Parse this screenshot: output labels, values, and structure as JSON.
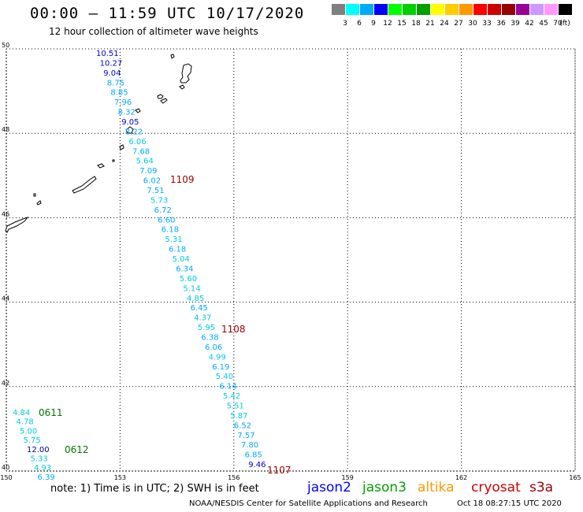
{
  "header": {
    "title": "00:00 – 11:59 UTC 10/17/2020",
    "subtitle": "12 hour collection of altimeter wave heights"
  },
  "legend": {
    "unit": "(ft)",
    "bins": [
      {
        "label": "3",
        "color": "#808080"
      },
      {
        "label": "6",
        "color": "#00ffff"
      },
      {
        "label": "9",
        "color": "#00aaff"
      },
      {
        "label": "12",
        "color": "#0000ff"
      },
      {
        "label": "15",
        "color": "#00ff00"
      },
      {
        "label": "18",
        "color": "#00d000"
      },
      {
        "label": "21",
        "color": "#00a000"
      },
      {
        "label": "24",
        "color": "#ffff00"
      },
      {
        "label": "27",
        "color": "#ffcc00"
      },
      {
        "label": "30",
        "color": "#ff9900"
      },
      {
        "label": "33",
        "color": "#ff0000"
      },
      {
        "label": "36",
        "color": "#d00000"
      },
      {
        "label": "39",
        "color": "#990000"
      },
      {
        "label": "42",
        "color": "#990099"
      },
      {
        "label": "45",
        "color": "#cc99ff"
      },
      {
        "label": "70",
        "color": "#ff99ff"
      },
      {
        "label": "",
        "color": "#000000"
      }
    ]
  },
  "map": {
    "lon_range": [
      150,
      165
    ],
    "lat_range": [
      40,
      50
    ],
    "x_ticks": [
      "150",
      "153",
      "156",
      "159",
      "162",
      "165"
    ],
    "y_ticks": [
      "50",
      "48",
      "46",
      "44",
      "42",
      "40"
    ],
    "grid": "dotted",
    "tracks": [
      {
        "points": [
          {
            "label": "10.51",
            "color": "#0000cc"
          },
          {
            "label": "10.27",
            "color": "#0000cc"
          },
          {
            "label": "9.04",
            "color": "#0000cc"
          },
          {
            "label": "8.75",
            "color": "#00aaff"
          },
          {
            "label": "8.85",
            "color": "#00aaff"
          },
          {
            "label": "7.96",
            "color": "#00aaff"
          },
          {
            "label": "8.32",
            "color": "#00aaff"
          },
          {
            "label": "9.05",
            "color": "#0000cc"
          },
          {
            "label": "8.22",
            "color": "#00aaff"
          },
          {
            "label": "6.06",
            "color": "#00ccdd"
          },
          {
            "label": "7.68",
            "color": "#00aaff"
          },
          {
            "label": "5.64",
            "color": "#00ccdd"
          },
          {
            "label": "7.09",
            "color": "#00aaff"
          },
          {
            "label": "6.02",
            "color": "#00aaff"
          },
          {
            "label": "7.51",
            "color": "#00aaff"
          },
          {
            "label": "5.73",
            "color": "#00ccdd"
          },
          {
            "label": "6.72",
            "color": "#00aaff"
          },
          {
            "label": "6.60",
            "color": "#00aaff"
          },
          {
            "label": "6.18",
            "color": "#00aaff"
          },
          {
            "label": "5.31",
            "color": "#00ccdd"
          },
          {
            "label": "6.18",
            "color": "#00aaff"
          },
          {
            "label": "5.04",
            "color": "#00ccdd"
          },
          {
            "label": "6.34",
            "color": "#00aaff"
          },
          {
            "label": "5.60",
            "color": "#00ccdd"
          },
          {
            "label": "5.14",
            "color": "#00ccdd"
          },
          {
            "label": "4.85",
            "color": "#00ccdd"
          },
          {
            "label": "6.45",
            "color": "#00aaff"
          },
          {
            "label": "4.37",
            "color": "#00ccdd"
          },
          {
            "label": "5.95",
            "color": "#00ccdd"
          },
          {
            "label": "6.38",
            "color": "#00aaff"
          },
          {
            "label": "6.06",
            "color": "#00aaff"
          },
          {
            "label": "4.99",
            "color": "#00ccdd"
          },
          {
            "label": "6.19",
            "color": "#00aaff"
          },
          {
            "label": "5.40",
            "color": "#00ccdd"
          },
          {
            "label": "6.14",
            "color": "#00aaff"
          },
          {
            "label": "5.42",
            "color": "#00ccdd"
          },
          {
            "label": "5.51",
            "color": "#00ccdd"
          },
          {
            "label": "5.87",
            "color": "#00ccdd"
          },
          {
            "label": "6.52",
            "color": "#00aaff"
          },
          {
            "label": "7.57",
            "color": "#00aaff"
          },
          {
            "label": "7.80",
            "color": "#00aaff"
          },
          {
            "label": "6.85",
            "color": "#00aaff"
          },
          {
            "label": "9.46",
            "color": "#0000cc"
          }
        ]
      },
      {
        "points": [
          {
            "label": "4.84",
            "color": "#00ccdd"
          },
          {
            "label": "4.78",
            "color": "#00ccdd"
          },
          {
            "label": "5.00",
            "color": "#00ccdd"
          },
          {
            "label": "5.75",
            "color": "#00ccdd"
          },
          {
            "label": "12.00",
            "color": "#000099"
          },
          {
            "label": "5.33",
            "color": "#00ccdd"
          },
          {
            "label": "4.93",
            "color": "#00ccdd"
          },
          {
            "label": "6.39",
            "color": "#00aaff"
          }
        ]
      }
    ],
    "time_labels": [
      {
        "label": "1109",
        "color": "#990000"
      },
      {
        "label": "1108",
        "color": "#990000"
      },
      {
        "label": "1107",
        "color": "#990000"
      },
      {
        "label": "0611",
        "color": "#007700"
      },
      {
        "label": "0612",
        "color": "#007700"
      }
    ]
  },
  "footer": {
    "note": "note: 1) Time is in UTC; 2) SWH is in feet",
    "satellites": [
      {
        "name": "jason2",
        "color": "#0000ff"
      },
      {
        "name": "jason3",
        "color": "#00a000"
      },
      {
        "name": "altika",
        "color": "#ff9900"
      },
      {
        "name": "cryosat",
        "color": "#cc0000"
      },
      {
        "name": "s3a",
        "color": "#990000"
      }
    ],
    "credit": "NOAA/NESDIS Center for Satellite Applications and Research",
    "timestamp": "Oct 18 08:27:15 UTC 2020"
  }
}
